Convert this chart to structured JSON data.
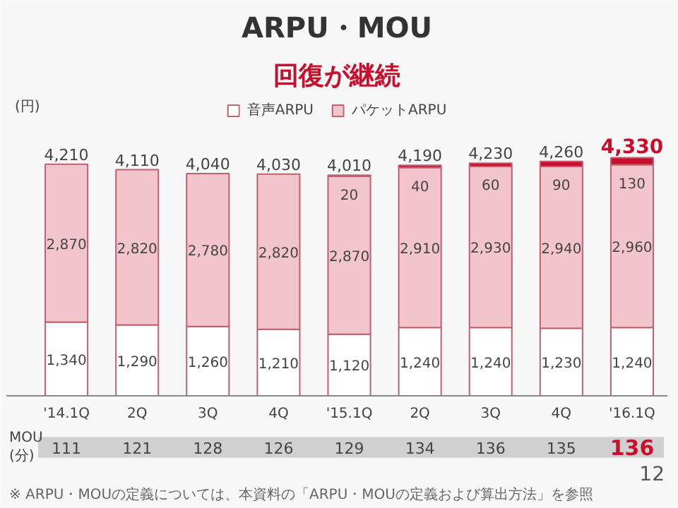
{
  "chart_data": {
    "type": "bar",
    "stacked": true,
    "title": "ARPU・MOU",
    "subtitle": "回復が継続",
    "ylabel": "(円)",
    "categories": [
      "'14.1Q",
      "2Q",
      "3Q",
      "4Q",
      "'15.1Q",
      "2Q",
      "3Q",
      "4Q",
      "'16.1Q"
    ],
    "series": [
      {
        "name": "音声ARPU",
        "color": "#ffffff",
        "values": [
          1340,
          1290,
          1260,
          1210,
          1120,
          1240,
          1240,
          1230,
          1240
        ],
        "value_labels": [
          "1,340",
          "1,290",
          "1,260",
          "1,210",
          "1,120",
          "1,240",
          "1,240",
          "1,230",
          "1,240"
        ]
      },
      {
        "name": "パケットARPU",
        "color": "#f2c4cc",
        "values": [
          2870,
          2820,
          2780,
          2820,
          2870,
          2910,
          2930,
          2940,
          2960
        ],
        "value_labels": [
          "2,870",
          "2,820",
          "2,780",
          "2,820",
          "2,870",
          "2,910",
          "2,930",
          "2,940",
          "2,960"
        ]
      },
      {
        "color": "#c8102e",
        "values": [
          null,
          null,
          null,
          null,
          20,
          40,
          60,
          90,
          130
        ],
        "value_labels": [
          null,
          null,
          null,
          null,
          "20",
          "40",
          "60",
          "90",
          "130"
        ]
      }
    ],
    "totals": [
      "4,210",
      "4,110",
      "4,040",
      "4,030",
      "4,010",
      "4,190",
      "4,230",
      "4,260",
      "4,330"
    ],
    "legend": "top",
    "annotations": [
      "MOU\n(分)",
      "111",
      "121",
      "128",
      "126",
      "129",
      "134",
      "136",
      "135",
      "136",
      "12",
      "※ ARPU・MOUの定義については、本資料の「ARPU・MOUの定義および算出方法」を参照"
    ]
  }
}
